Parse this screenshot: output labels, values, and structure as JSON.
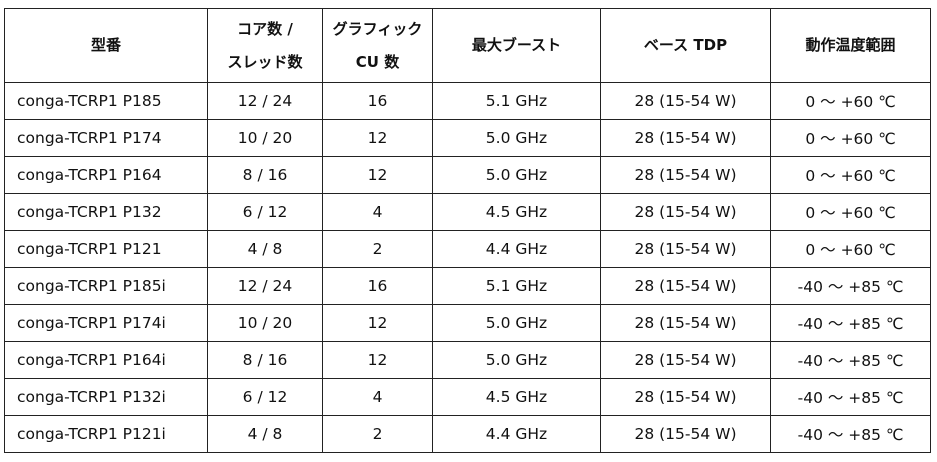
{
  "headers": [
    {
      "line1": "型番",
      "line2": ""
    },
    {
      "line1": "コア数 /",
      "line2": "スレッド数"
    },
    {
      "line1": "グラフィック",
      "line2": "CU 数"
    },
    {
      "line1": "最大ブースト",
      "line2": ""
    },
    {
      "line1": "ベース TDP",
      "line2": ""
    },
    {
      "line1": "動作温度範囲",
      "line2": ""
    }
  ],
  "rows": [
    [
      "conga-TCRP1 P185",
      "12 / 24",
      "16",
      "5.1 GHz",
      "28 (15-54 W)",
      "0 ～ +60 ℃"
    ],
    [
      "conga-TCRP1 P174",
      "10 / 20",
      "12",
      "5.0 GHz",
      "28 (15-54 W)",
      "0 ～ +60 ℃"
    ],
    [
      "conga-TCRP1 P164",
      "8 / 16",
      "12",
      "5.0 GHz",
      "28 (15-54 W)",
      "0 ～ +60 ℃"
    ],
    [
      "conga-TCRP1 P132",
      "6 / 12",
      "4",
      "4.5 GHz",
      "28 (15-54 W)",
      "0 ～ +60 ℃"
    ],
    [
      "conga-TCRP1 P121",
      "4 / 8",
      "2",
      "4.4 GHz",
      "28 (15-54 W)",
      "0 ～ +60 ℃"
    ],
    [
      "conga-TCRP1 P185i",
      "12 / 24",
      "16",
      "5.1 GHz",
      "28 (15-54 W)",
      "-40 ～ +85 ℃"
    ],
    [
      "conga-TCRP1 P174i",
      "10 / 20",
      "12",
      "5.0 GHz",
      "28 (15-54 W)",
      "-40 ～ +85 ℃"
    ],
    [
      "conga-TCRP1 P164i",
      "8 / 16",
      "12",
      "5.0 GHz",
      "28 (15-54 W)",
      "-40 ～ +85 ℃"
    ],
    [
      "conga-TCRP1 P132i",
      "6 / 12",
      "4",
      "4.5 GHz",
      "28 (15-54 W)",
      "-40 ～ +85 ℃"
    ],
    [
      "conga-TCRP1 P121i",
      "4 / 8",
      "2",
      "4.4 GHz",
      "28 (15-54 W)",
      "-40 ～ +85 ℃"
    ]
  ]
}
